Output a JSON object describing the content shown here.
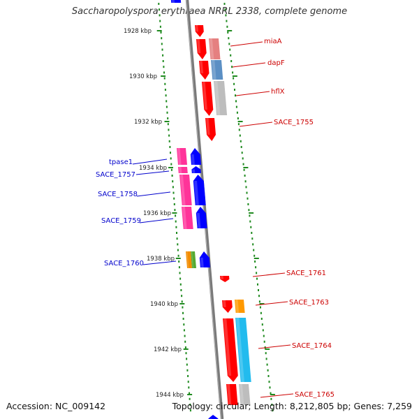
{
  "title": "Saccharopolyspora erythraea NRRL 2338, complete genome",
  "accession": "Accession: NC_009142",
  "summary": "Topology: circular; Length: 8,212,805 bp; Genes: 7,259",
  "colors": {
    "backbone": "#808080",
    "ticks": "#1f8a1f",
    "forward_label": "#cc0000",
    "reverse_label": "#0000cc"
  },
  "scale_labels": [
    "1928 kbp",
    "1930 kbp",
    "1932 kbp",
    "1934 kbp",
    "1936 kbp",
    "1938 kbp",
    "1940 kbp",
    "1942 kbp",
    "1944 kbp"
  ],
  "forward_genes": [
    {
      "label": "miaA",
      "color": "#ff0000"
    },
    {
      "label": "dapF",
      "color": "#ff0000"
    },
    {
      "label": "hflX",
      "color": "#ff0000"
    },
    {
      "label": "SACE_1755",
      "color": "#ff0000"
    },
    {
      "label": "SACE_1761",
      "color": "#ff0000"
    },
    {
      "label": "SACE_1763",
      "color": "#ff0000"
    },
    {
      "label": "SACE_1764",
      "color": "#ff0000"
    },
    {
      "label": "SACE_1765",
      "color": "#ff0000"
    }
  ],
  "reverse_genes": [
    {
      "label": "tpase1",
      "color": "#0000ff"
    },
    {
      "label": "SACE_1757",
      "color": "#0000ff"
    },
    {
      "label": "SACE_1758",
      "color": "#0000ff"
    },
    {
      "label": "SACE_1759",
      "color": "#0000ff"
    },
    {
      "label": "SACE_1760",
      "color": "#0000ff"
    }
  ],
  "cog_bars": [
    {
      "gene": "miaA",
      "color": "#e58080"
    },
    {
      "gene": "dapF",
      "color": "#5b8fc4"
    },
    {
      "gene": "hflX",
      "color": "#bdbdbd"
    },
    {
      "gene": "tpase1",
      "color": "#ff3399"
    },
    {
      "gene": "SACE_1757",
      "color": "#ff3399"
    },
    {
      "gene": "SACE_1758",
      "color": "#ff3399"
    },
    {
      "gene": "SACE_1759",
      "color": "#ff3399"
    },
    {
      "gene": "SACE_1760",
      "color": "#f28c00"
    },
    {
      "gene": "SACE_1760",
      "color": "#55aa33"
    },
    {
      "gene": "SACE_1763",
      "color": "#ff9900"
    },
    {
      "gene": "SACE_1764",
      "color": "#22bbee"
    },
    {
      "gene": "SACE_1765",
      "color": "#bdbdbd"
    }
  ]
}
